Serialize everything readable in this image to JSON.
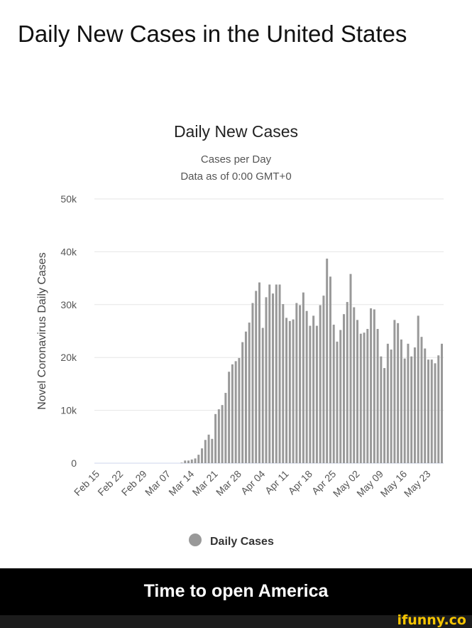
{
  "page_title": "Daily New Cases in the United States",
  "caption": "Time to open America",
  "logo_text": "ifunny.co",
  "colors": {
    "bar": "#999999",
    "grid": "#e6e6e6",
    "logo": "#f5c400"
  },
  "chart_data": {
    "type": "bar",
    "title": "Daily New Cases",
    "subtitle": "Cases per Day",
    "subtitle2": "Data as of 0:00 GMT+0",
    "ylabel": "Novel Coronavirus Daily Cases",
    "xlabel": "",
    "ylim": [
      0,
      50000
    ],
    "yticks": [
      0,
      10000,
      20000,
      30000,
      40000,
      50000
    ],
    "ytick_labels": [
      "0",
      "10k",
      "20k",
      "30k",
      "40k",
      "50k"
    ],
    "grid": true,
    "legend": {
      "position": "bottom",
      "entries": [
        "Daily Cases"
      ]
    },
    "xtick_labels": [
      "Feb 15",
      "Feb 22",
      "Feb 29",
      "Mar 07",
      "Mar 14",
      "Mar 21",
      "Mar 28",
      "Apr 04",
      "Apr 11",
      "Apr 18",
      "Apr 25",
      "May 02",
      "May 09",
      "May 16",
      "May 23"
    ],
    "x": [
      "Feb 15",
      "Feb 16",
      "Feb 17",
      "Feb 18",
      "Feb 19",
      "Feb 20",
      "Feb 21",
      "Feb 22",
      "Feb 23",
      "Feb 24",
      "Feb 25",
      "Feb 26",
      "Feb 27",
      "Feb 28",
      "Feb 29",
      "Mar 01",
      "Mar 02",
      "Mar 03",
      "Mar 04",
      "Mar 05",
      "Mar 06",
      "Mar 07",
      "Mar 08",
      "Mar 09",
      "Mar 10",
      "Mar 11",
      "Mar 12",
      "Mar 13",
      "Mar 14",
      "Mar 15",
      "Mar 16",
      "Mar 17",
      "Mar 18",
      "Mar 19",
      "Mar 20",
      "Mar 21",
      "Mar 22",
      "Mar 23",
      "Mar 24",
      "Mar 25",
      "Mar 26",
      "Mar 27",
      "Mar 28",
      "Mar 29",
      "Mar 30",
      "Mar 31",
      "Apr 01",
      "Apr 02",
      "Apr 03",
      "Apr 04",
      "Apr 05",
      "Apr 06",
      "Apr 07",
      "Apr 08",
      "Apr 09",
      "Apr 10",
      "Apr 11",
      "Apr 12",
      "Apr 13",
      "Apr 14",
      "Apr 15",
      "Apr 16",
      "Apr 17",
      "Apr 18",
      "Apr 19",
      "Apr 20",
      "Apr 21",
      "Apr 22",
      "Apr 23",
      "Apr 24",
      "Apr 25",
      "Apr 26",
      "Apr 27",
      "Apr 28",
      "Apr 29",
      "Apr 30",
      "May 01",
      "May 02",
      "May 03",
      "May 04",
      "May 05",
      "May 06",
      "May 07",
      "May 08",
      "May 09",
      "May 10",
      "May 11",
      "May 12",
      "May 13",
      "May 14",
      "May 15",
      "May 16",
      "May 17",
      "May 18",
      "May 19",
      "May 20",
      "May 21",
      "May 22",
      "May 23",
      "May 24",
      "May 25",
      "May 26",
      "May 27"
    ],
    "values": [
      0,
      0,
      0,
      0,
      0,
      0,
      0,
      0,
      0,
      0,
      0,
      0,
      0,
      0,
      0,
      0,
      0,
      0,
      0,
      0,
      0,
      0,
      0,
      0,
      0,
      100,
      500,
      500,
      700,
      900,
      1600,
      2800,
      4400,
      5400,
      4600,
      9300,
      10200,
      11000,
      13300,
      17300,
      18700,
      19300,
      19900,
      22900,
      24900,
      26600,
      30300,
      32600,
      34200,
      25600,
      31400,
      33800,
      32100,
      33800,
      33800,
      30100,
      27500,
      26900,
      27200,
      30300,
      29900,
      32300,
      28800,
      26000,
      27900,
      26000,
      29900,
      31700,
      38700,
      35300,
      26200,
      23000,
      25200,
      28200,
      30500,
      35800,
      29500,
      27100,
      24500,
      24700,
      25400,
      29300,
      29100,
      25400,
      20200,
      18000,
      22600,
      21500,
      27100,
      26500,
      23400,
      19800,
      22600,
      20200,
      21900,
      27900,
      23900,
      21700,
      19600,
      19600,
      18900,
      20400,
      22600
    ]
  }
}
